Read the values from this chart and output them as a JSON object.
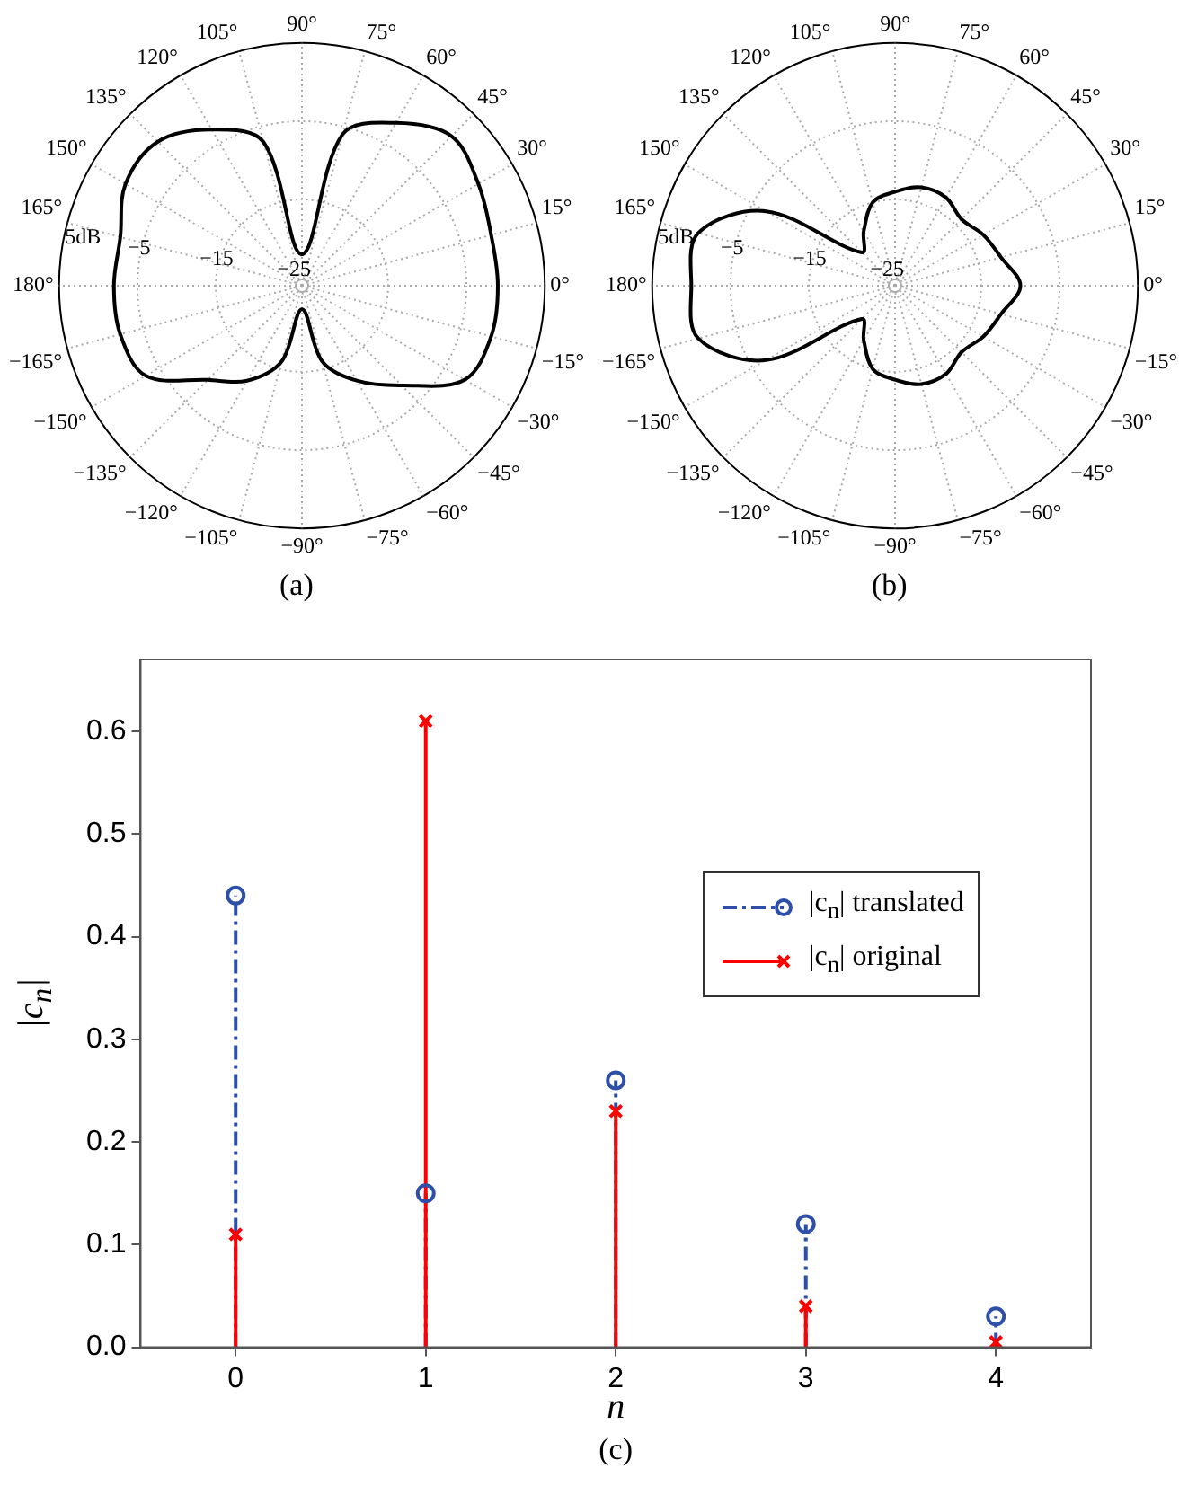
{
  "chart_data": [
    {
      "type": "radar",
      "title": "(a)",
      "categories": [
        "90°",
        "75°",
        "60°",
        "45°",
        "30°",
        "15°",
        "0°",
        "−15°",
        "−30°",
        "−45°",
        "−60°",
        "−75°",
        "−90°",
        "−105°",
        "−120°",
        "−135°",
        "−150°",
        "−165°",
        "180°",
        "165°",
        "150°",
        "135°",
        "120°",
        "105°"
      ],
      "series": [
        {
          "color": "#000000",
          "values": [
            -22,
            -6,
            -2,
            1,
            0,
            -1,
            -1,
            -1,
            -2,
            -8,
            -12,
            -16,
            -23,
            -16,
            -12,
            -9,
            -3,
            -2,
            -2,
            -2,
            0,
            0,
            -3,
            -7
          ]
        }
      ],
      "ylim": [
        -26,
        5
      ],
      "yticks": [
        {
          "value": -25,
          "label": "−25"
        },
        {
          "value": -15,
          "label": "−15"
        },
        {
          "value": -5,
          "label": "−5"
        },
        {
          "value": 5,
          "label": "5dB"
        }
      ],
      "grid": true
    },
    {
      "type": "radar",
      "title": "(b)",
      "categories": [
        "90°",
        "75°",
        "60°",
        "45°",
        "30°",
        "15°",
        "0°",
        "−15°",
        "−30°",
        "−45°",
        "−60°",
        "−75°",
        "−90°",
        "−105°",
        "−120°",
        "−135°",
        "−150°",
        "−165°",
        "180°",
        "165°",
        "150°",
        "135°",
        "120°",
        "105°"
      ],
      "series": [
        {
          "color": "#000000",
          "values": [
            -14,
            -13,
            -13,
            -14,
            -13,
            -12,
            -10,
            -12,
            -13,
            -14,
            -13,
            -13,
            -14,
            -15,
            -18,
            -20,
            -7,
            0,
            0,
            0,
            -7,
            -20,
            -18,
            -15
          ]
        }
      ],
      "ylim": [
        -26,
        5
      ],
      "yticks": [
        {
          "value": -25,
          "label": "−25"
        },
        {
          "value": -15,
          "label": "−15"
        },
        {
          "value": -5,
          "label": "−5"
        },
        {
          "value": 5,
          "label": "5dB"
        }
      ],
      "grid": true
    },
    {
      "type": "lollipop",
      "title": "(c)",
      "xlabel": "n",
      "ylabel": "|c$_{n}$|",
      "x": [
        0,
        1,
        2,
        3,
        4
      ],
      "xlim": [
        -0.5,
        4.5
      ],
      "xticks": [
        0,
        1,
        2,
        3,
        4
      ],
      "ylim": [
        0,
        0.67
      ],
      "yticks": [
        {
          "value": 0,
          "label": "0.0"
        },
        0.1,
        0.2,
        0.3,
        0.4,
        0.5,
        0.6
      ],
      "legend": "right",
      "series": [
        {
          "name": "|c$_{n}$| translated",
          "color": "#2e4fa8",
          "values": [
            0.44,
            0.15,
            0.26,
            0.12,
            0.03
          ],
          "marker": "circle",
          "line_style": "dashed"
        },
        {
          "name": "|c$_{n}$| original",
          "color": "#ff0000",
          "values": [
            0.11,
            0.61,
            0.23,
            0.04,
            0.005
          ],
          "marker": "cross",
          "line_style": "solid"
        }
      ]
    }
  ]
}
